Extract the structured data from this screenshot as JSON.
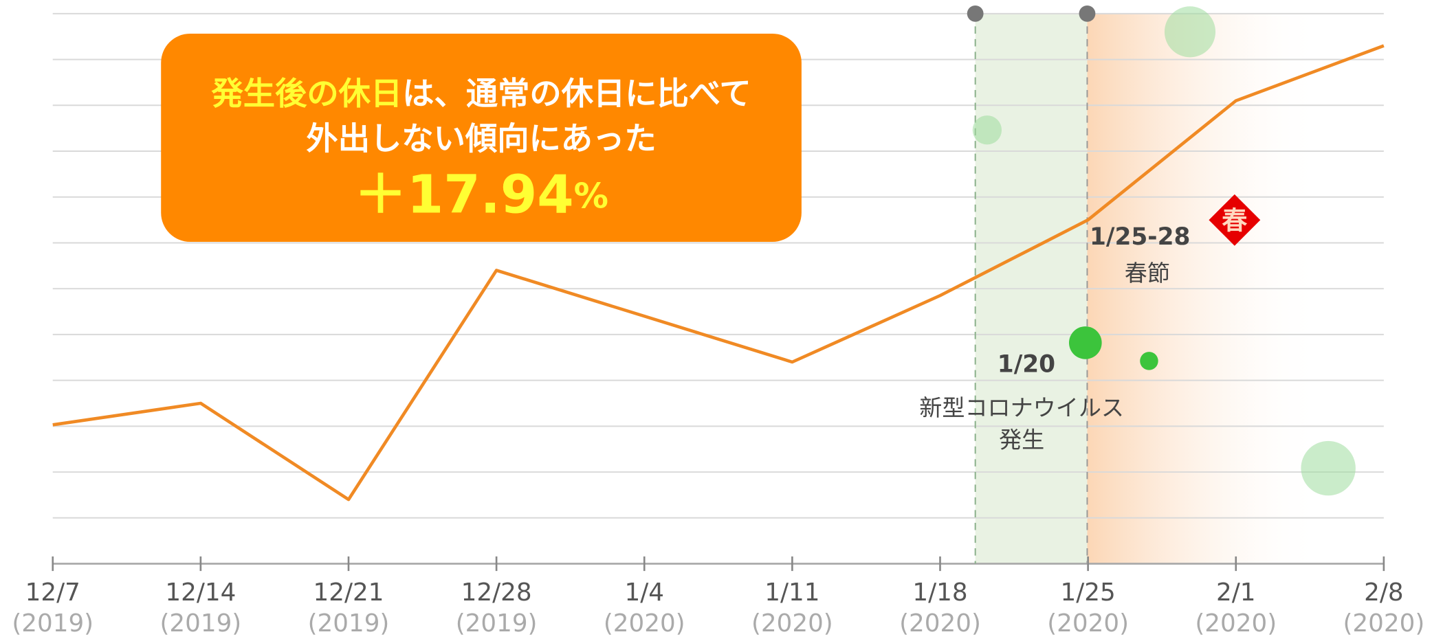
{
  "chart_data": {
    "type": "line",
    "categories": [
      "12/7",
      "12/14",
      "12/21",
      "12/28",
      "1/4",
      "1/11",
      "1/18",
      "1/25",
      "2/1",
      "2/8"
    ],
    "category_years": [
      "(2019)",
      "(2019)",
      "(2019)",
      "(2019)",
      "(2020)",
      "(2020)",
      "(2020)",
      "(2020)",
      "(2020)",
      "(2020)"
    ],
    "values": [
      3.03,
      3.5,
      1.4,
      6.4,
      5.4,
      4.4,
      5.85,
      7.5,
      10.1,
      11.3
    ],
    "color": "#f08a24",
    "ylim": [
      0,
      12
    ],
    "yticks": [
      1,
      2,
      3,
      4,
      5,
      6,
      7,
      8,
      9,
      10,
      11,
      12
    ],
    "grid": true,
    "callout": {
      "highlight": "発生後の休日",
      "line1_rest": "は、通常の休日に比べて",
      "line2": "外出しない傾向にあった",
      "figure": "＋17.94",
      "unit": "%"
    },
    "annotations": {
      "outbreak_date": "1/20",
      "outbreak_label": "新型コロナウイルス",
      "outbreak_label2": "発生",
      "festival_date": "1/25-28",
      "festival_label": "春節",
      "festival_icon": "春"
    }
  }
}
